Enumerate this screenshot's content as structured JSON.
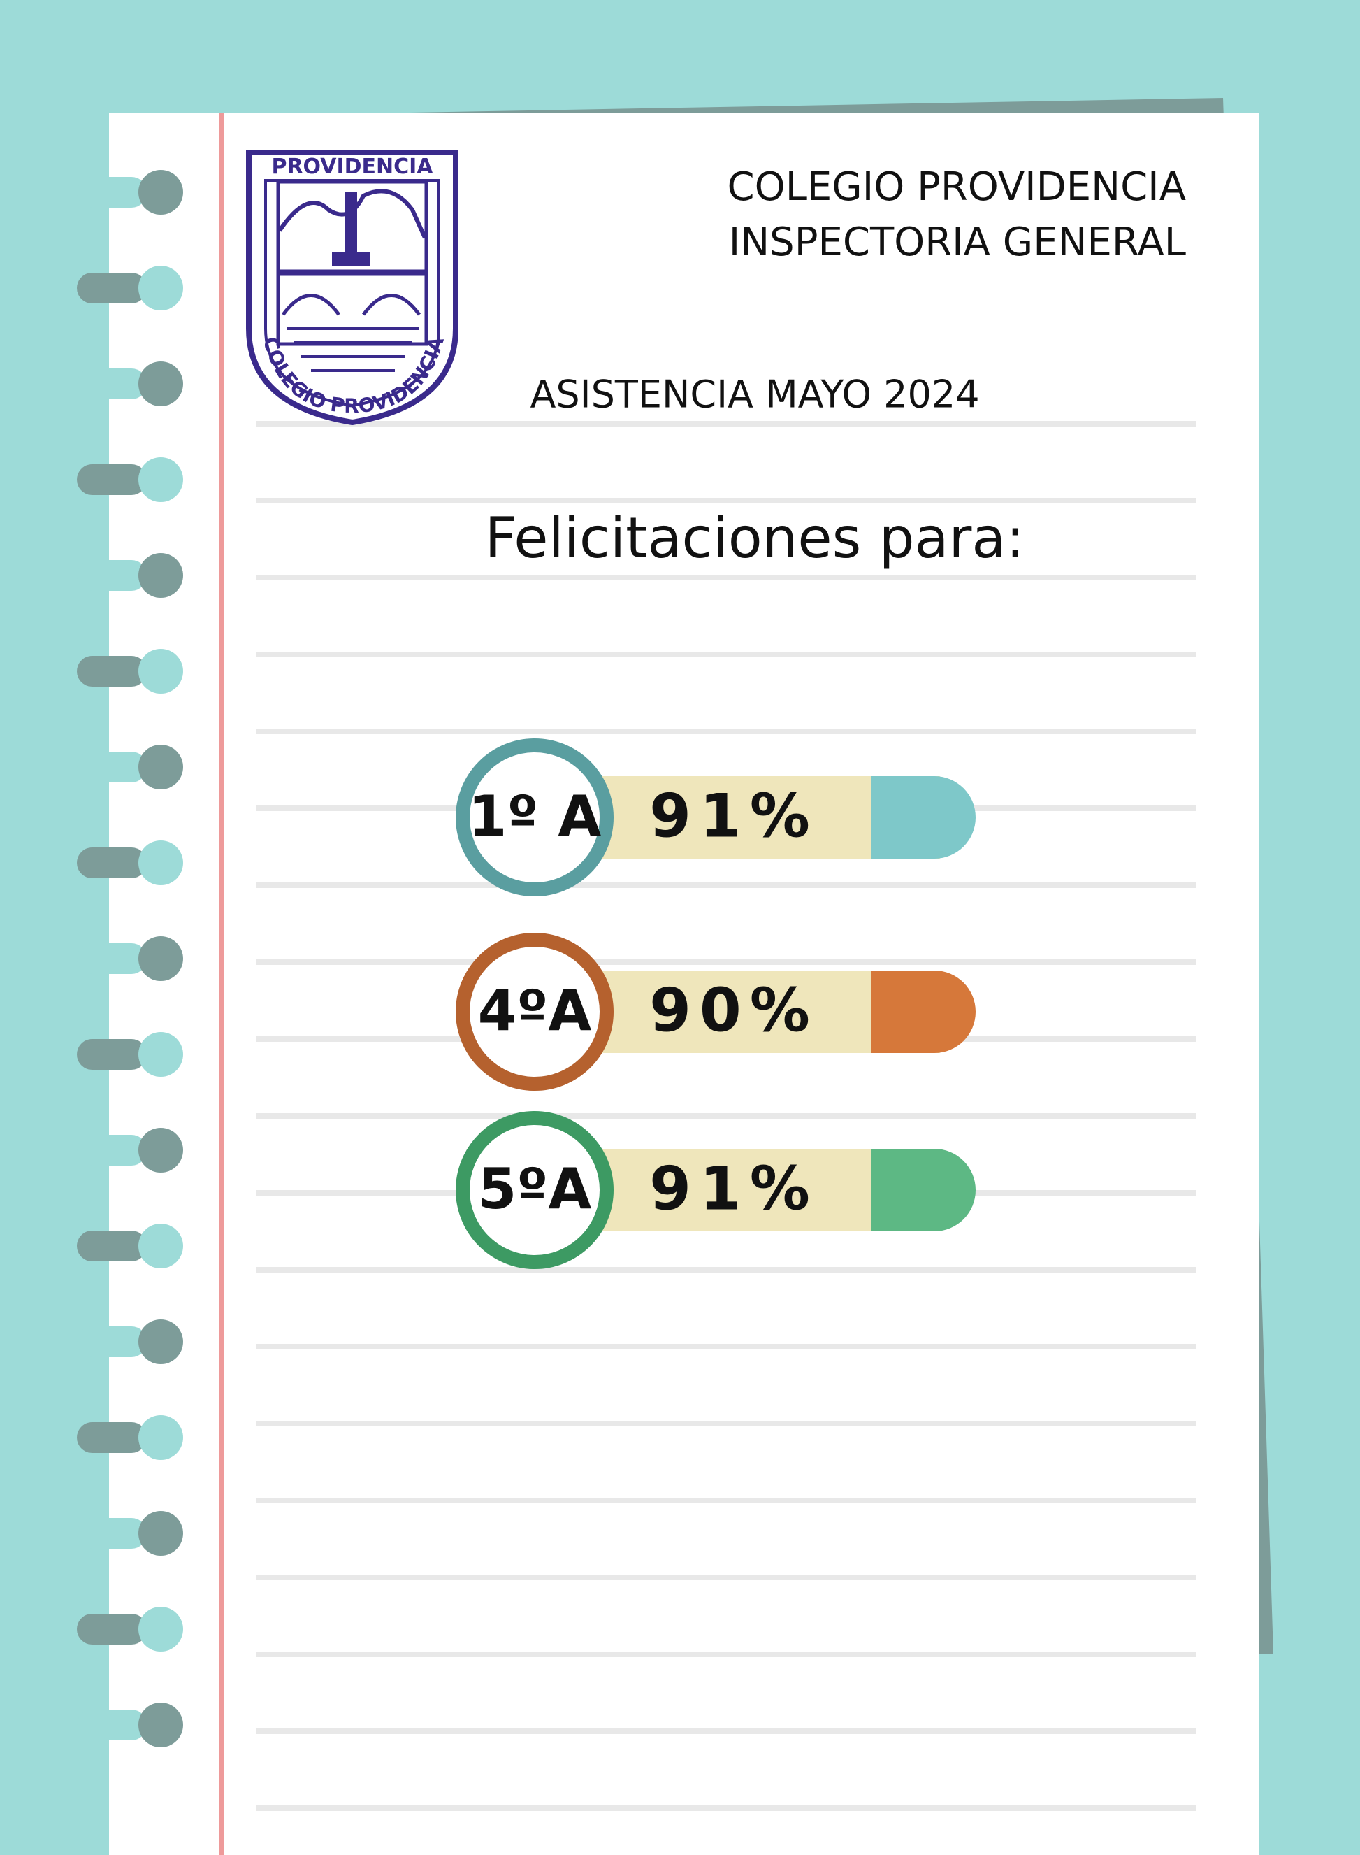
{
  "header": {
    "school": "COLEGIO PROVIDENCIA",
    "department": "INSPECTORIA GENERAL",
    "subtitle": "ASISTENCIA MAYO 2024"
  },
  "logo": {
    "top_text": "PROVIDENCIA",
    "bottom_text": "COLEGIO PROVIDENCIA"
  },
  "title": "Felicitaciones para:",
  "items": [
    {
      "course": "1º A",
      "attendance": "91%",
      "ring_color": "#5a9ea0",
      "end_color": "#7ec8c9"
    },
    {
      "course": "4ºA",
      "attendance": "90%",
      "ring_color": "#b5612e",
      "end_color": "#d6783a"
    },
    {
      "course": "5ºA",
      "attendance": "91%",
      "ring_color": "#3d9a63",
      "end_color": "#5db884"
    }
  ]
}
